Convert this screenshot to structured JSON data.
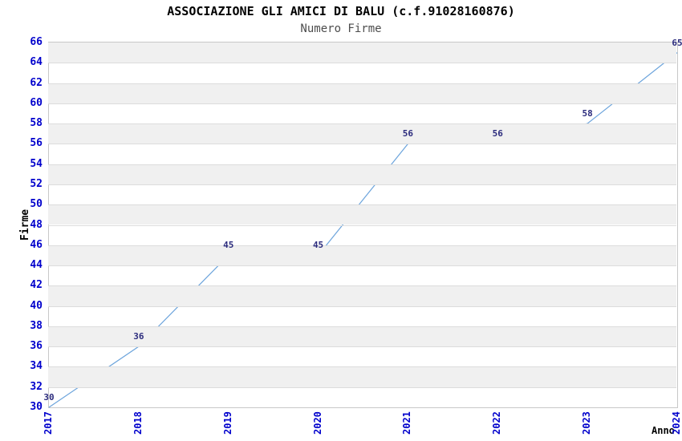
{
  "chart_data": {
    "type": "line",
    "title": "ASSOCIAZIONE GLI AMICI DI BALU (c.f.91028160876)",
    "subtitle": "Numero Firme",
    "xlabel": "Anno",
    "ylabel": "Firme",
    "x": [
      2017,
      2018,
      2019,
      2020,
      2021,
      2022,
      2023,
      2024
    ],
    "series": [
      {
        "name": "Numero Firme",
        "values": [
          30,
          36,
          45,
          45,
          56,
          56,
          58,
          65
        ]
      }
    ],
    "ylim": [
      30,
      66
    ],
    "ytick_step": 2,
    "grid": "horizontal-bands",
    "legend_position": "none",
    "colors": {
      "line": "#6CA4DC",
      "axis_tick_labels": "#0000CC",
      "value_labels": "#2B2B7D",
      "band": "#F0F0F0",
      "gridline": "#DCDCDC",
      "plot_border": "#C8C8C8",
      "title": "#000000",
      "subtitle": "#4D4D4D"
    }
  }
}
